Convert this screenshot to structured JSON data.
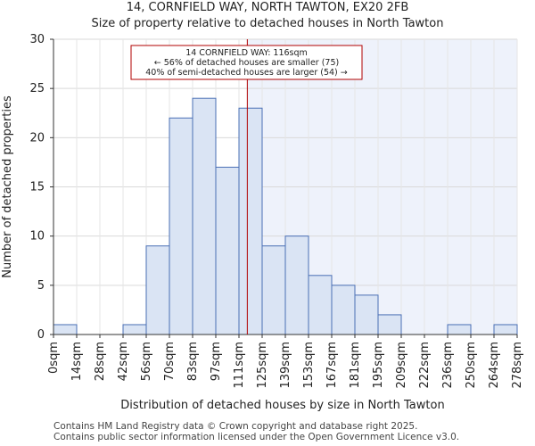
{
  "header": {
    "title": "14, CORNFIELD WAY, NORTH TAWTON, EX20 2FB",
    "subtitle": "Size of property relative to detached houses in North Tawton"
  },
  "footer": {
    "line1": "Contains HM Land Registry data © Crown copyright and database right 2025.",
    "line2": "Contains public sector information licensed under the Open Government Licence v3.0."
  },
  "chart_data": {
    "type": "bar",
    "title": "Size of property relative to detached houses in North Tawton",
    "xlabel": "Distribution of detached houses by size in North Tawton",
    "ylabel": "Number of detached properties",
    "ylim": [
      0,
      30
    ],
    "yticks": [
      0,
      5,
      10,
      15,
      20,
      25,
      30
    ],
    "bin_edges": [
      0,
      14,
      28,
      42,
      56,
      70,
      83,
      97,
      111,
      125,
      139,
      153,
      167,
      181,
      195,
      209,
      222,
      236,
      250,
      264,
      278
    ],
    "tick_labels": [
      "0sqm",
      "14sqm",
      "28sqm",
      "42sqm",
      "56sqm",
      "70sqm",
      "83sqm",
      "97sqm",
      "111sqm",
      "125sqm",
      "139sqm",
      "153sqm",
      "167sqm",
      "181sqm",
      "195sqm",
      "209sqm",
      "222sqm",
      "236sqm",
      "250sqm",
      "264sqm",
      "278sqm"
    ],
    "values": [
      1,
      0,
      0,
      1,
      9,
      22,
      24,
      17,
      23,
      9,
      10,
      6,
      5,
      4,
      2,
      0,
      0,
      1,
      0,
      1
    ],
    "property_size_sqm": 116,
    "marker_bin_position": 8.36,
    "annotation": {
      "line1": "14 CORNFIELD WAY: 116sqm",
      "line2": "← 56% of detached houses are smaller (75)",
      "line3": "40% of semi-detached houses are larger (54) →"
    },
    "colors": {
      "bar_fill": "#dae4f4",
      "bar_stroke": "#4a6fb5",
      "marker_line": "#b00000",
      "highlight_region": "#eef2fb",
      "annotation_border": "#b00000"
    }
  }
}
